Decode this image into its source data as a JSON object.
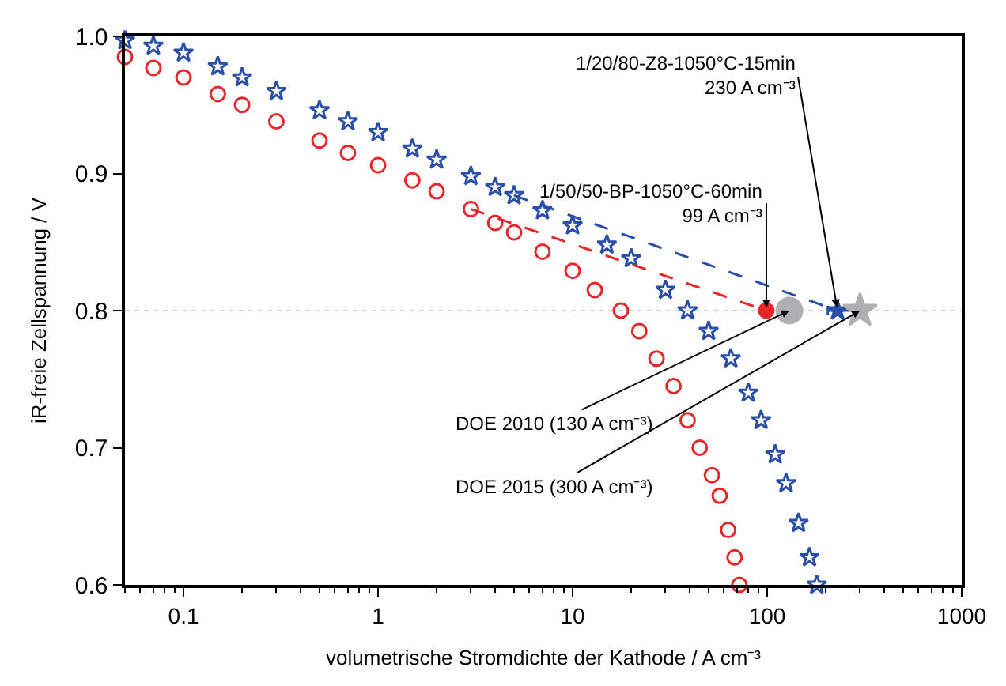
{
  "chart_data": {
    "type": "scatter",
    "xlabel": "volumetrische Stromdichte der Kathode / A cm⁻³",
    "ylabel": "iR-freie Zellspannung / V",
    "log": "x",
    "xlim": [
      0.05,
      1000
    ],
    "xticks": [
      0.1,
      1,
      10,
      100,
      1000
    ],
    "ylim": [
      0.6,
      1.0
    ],
    "yticks": [
      0.6,
      0.7,
      0.8,
      0.9,
      {
        "value": 1.0,
        "label": "1.0"
      }
    ],
    "ref_lines": [
      {
        "axis": "y",
        "value": 0.8,
        "color": "#d0d0d0",
        "line_style": "dotted"
      }
    ],
    "series": [
      {
        "marker": "circle",
        "color": "#e8262a",
        "x": [
          0.05,
          0.07,
          0.1,
          0.15,
          0.2,
          0.3,
          0.5,
          0.7,
          1,
          1.5,
          2,
          3,
          4,
          5,
          7,
          10,
          13,
          17.7,
          22,
          27,
          33,
          39,
          45,
          52,
          57,
          63,
          68,
          72
        ],
        "values": [
          0.985,
          0.977,
          0.97,
          0.958,
          0.95,
          0.938,
          0.924,
          0.915,
          0.906,
          0.895,
          0.887,
          0.874,
          0.864,
          0.857,
          0.843,
          0.829,
          0.815,
          0.8,
          0.785,
          0.765,
          0.745,
          0.72,
          0.7,
          0.68,
          0.665,
          0.64,
          0.62,
          0.6
        ]
      },
      {
        "marker": "star",
        "color": "#2a4fa8",
        "x": [
          0.05,
          0.07,
          0.1,
          0.15,
          0.2,
          0.3,
          0.5,
          0.7,
          1,
          1.5,
          2,
          3,
          4,
          5,
          7,
          10,
          15,
          20,
          30,
          39,
          50,
          65,
          80,
          93,
          110,
          125,
          145,
          165,
          180
        ],
        "values": [
          0.997,
          0.993,
          0.988,
          0.978,
          0.97,
          0.96,
          0.946,
          0.938,
          0.93,
          0.918,
          0.91,
          0.898,
          0.89,
          0.884,
          0.873,
          0.862,
          0.848,
          0.838,
          0.815,
          0.8,
          0.785,
          0.765,
          0.74,
          0.72,
          0.695,
          0.674,
          0.645,
          0.62,
          0.6
        ]
      },
      {
        "type": "line",
        "line_style": "dashed",
        "marker": "none",
        "color": "#e8262a",
        "x": [
          3,
          99
        ],
        "values": [
          0.874,
          0.8
        ]
      },
      {
        "type": "line",
        "line_style": "dashed",
        "marker": "none",
        "color": "#2a4fa8",
        "x": [
          5,
          230
        ],
        "values": [
          0.884,
          0.8
        ]
      },
      {
        "type": "scatter",
        "marker": "circle",
        "color": "#e8262a",
        "x": [
          99
        ],
        "values": [
          0.8
        ]
      },
      {
        "type": "scatter",
        "marker": "circle",
        "color": "#b0b0b2",
        "x": [
          130
        ],
        "values": [
          0.8
        ]
      },
      {
        "type": "scatter",
        "marker": "star",
        "color": "#2a4fa8",
        "x": [
          230
        ],
        "values": [
          0.8
        ],
        "xerrors": [
          [
            205,
            280
          ]
        ]
      },
      {
        "type": "scatter",
        "marker": "star",
        "color": "#b0b0b2",
        "x": [
          300
        ],
        "values": [
          0.8
        ]
      }
    ],
    "annotations": [
      {
        "text": "1/50/50-BP-1050°C-60min\n99 A cm⁻³",
        "x": 99,
        "y": 0.8
      },
      {
        "text": "1/20/80-Z8-1050°C-15min\n230 A cm⁻³",
        "x": 230,
        "y": 0.8
      },
      {
        "text": "DOE 2010 (130 A cm⁻³)",
        "x": 130,
        "y": 0.8
      },
      {
        "text": "DOE 2015 (300 A cm⁻³)",
        "x": 300,
        "y": 0.8
      }
    ]
  }
}
